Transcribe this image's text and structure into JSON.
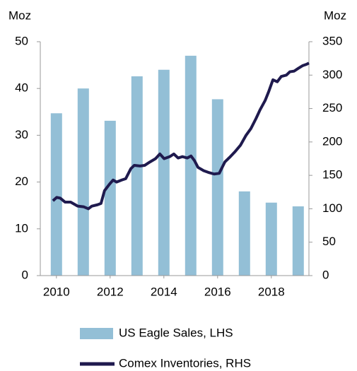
{
  "chart_data": {
    "type": "bar_line",
    "ylabel": "Moz",
    "y2label": "Moz",
    "xlim": [
      2009.4,
      2019.4
    ],
    "xticks": [
      2010,
      2012,
      2014,
      2016,
      2018
    ],
    "ylim": [
      0,
      50
    ],
    "yticks": [
      0,
      10,
      20,
      30,
      40,
      50
    ],
    "y2lim": [
      0,
      350
    ],
    "y2ticks": [
      0,
      50,
      100,
      150,
      200,
      250,
      300,
      350
    ],
    "series": [
      {
        "name": "US Eagle Sales, LHS",
        "type": "bar",
        "color": "#93bfd6",
        "x": [
          2010,
          2011,
          2012,
          2013,
          2014,
          2015,
          2016,
          2017,
          2018,
          2019
        ],
        "values": [
          34.7,
          40,
          33.1,
          42.6,
          44,
          47,
          37.7,
          18,
          15.6,
          14.8
        ]
      },
      {
        "name": "Comex Inventories, RHS",
        "type": "line",
        "axis": "y2",
        "color": "#1f1a4e",
        "x": [
          2009.87,
          2010.01,
          2010.14,
          2010.32,
          2010.53,
          2010.79,
          2011.01,
          2011.19,
          2011.32,
          2011.53,
          2011.66,
          2011.79,
          2011.98,
          2012.11,
          2012.24,
          2012.43,
          2012.58,
          2012.77,
          2012.9,
          2013.11,
          2013.29,
          2013.48,
          2013.69,
          2013.85,
          2014.01,
          2014.22,
          2014.37,
          2014.53,
          2014.69,
          2014.87,
          2015.01,
          2015.14,
          2015.27,
          2015.48,
          2015.69,
          2015.87,
          2016.06,
          2016.27,
          2016.45,
          2016.64,
          2016.85,
          2017.06,
          2017.24,
          2017.43,
          2017.58,
          2017.77,
          2017.9,
          2018.06,
          2018.22,
          2018.37,
          2018.56,
          2018.69,
          2018.85,
          2019.0,
          2019.16,
          2019.3,
          2019.4
        ],
        "values": [
          112,
          117,
          116,
          110,
          110,
          104,
          103,
          100,
          104,
          106,
          108,
          127,
          137,
          143,
          140,
          143,
          145,
          160,
          165,
          164,
          165,
          170,
          175,
          182,
          175,
          178,
          182,
          176,
          178,
          176,
          179,
          172,
          162,
          157,
          154,
          152,
          153,
          170,
          177,
          185,
          195,
          210,
          220,
          235,
          248,
          262,
          275,
          293,
          290,
          298,
          300,
          305,
          306,
          310,
          314,
          316,
          318
        ]
      }
    ]
  }
}
